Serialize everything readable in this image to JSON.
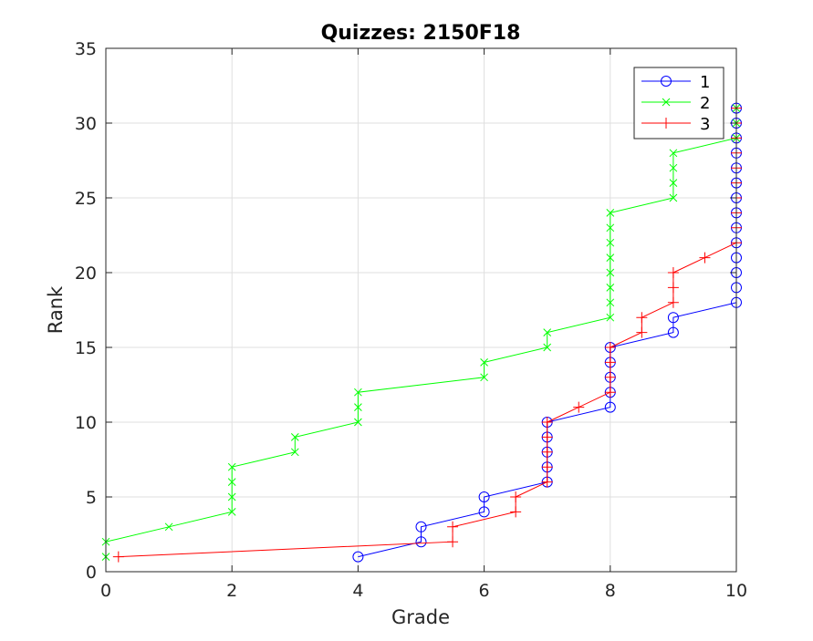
{
  "chart_data": {
    "type": "line",
    "title": "Quizzes: 2150F18",
    "xlabel": "Grade",
    "ylabel": "Rank",
    "xlim": [
      0,
      10
    ],
    "ylim": [
      0,
      35
    ],
    "xticks": [
      0,
      2,
      4,
      6,
      8,
      10
    ],
    "yticks": [
      0,
      5,
      10,
      15,
      20,
      25,
      30,
      35
    ],
    "grid": true,
    "legend_position": "top-right",
    "series": [
      {
        "name": "1",
        "color": "#0000ff",
        "marker": "circle",
        "points": [
          [
            4,
            1
          ],
          [
            5,
            2
          ],
          [
            5,
            3
          ],
          [
            6,
            4
          ],
          [
            6,
            5
          ],
          [
            7,
            6
          ],
          [
            7,
            7
          ],
          [
            7,
            8
          ],
          [
            7,
            9
          ],
          [
            7,
            10
          ],
          [
            8,
            11
          ],
          [
            8,
            12
          ],
          [
            8,
            13
          ],
          [
            8,
            14
          ],
          [
            8,
            15
          ],
          [
            9,
            16
          ],
          [
            9,
            17
          ],
          [
            10,
            18
          ],
          [
            10,
            19
          ],
          [
            10,
            20
          ],
          [
            10,
            21
          ],
          [
            10,
            22
          ],
          [
            10,
            23
          ],
          [
            10,
            24
          ],
          [
            10,
            25
          ],
          [
            10,
            26
          ],
          [
            10,
            27
          ],
          [
            10,
            28
          ],
          [
            10,
            29
          ],
          [
            10,
            30
          ],
          [
            10,
            31
          ]
        ]
      },
      {
        "name": "2",
        "color": "#00ff00",
        "marker": "x",
        "points": [
          [
            0,
            1
          ],
          [
            0,
            2
          ],
          [
            1,
            3
          ],
          [
            2,
            4
          ],
          [
            2,
            5
          ],
          [
            2,
            6
          ],
          [
            2,
            7
          ],
          [
            3,
            8
          ],
          [
            3,
            9
          ],
          [
            4,
            10
          ],
          [
            4,
            11
          ],
          [
            4,
            12
          ],
          [
            6,
            13
          ],
          [
            6,
            14
          ],
          [
            7,
            15
          ],
          [
            7,
            16
          ],
          [
            8,
            17
          ],
          [
            8,
            18
          ],
          [
            8,
            19
          ],
          [
            8,
            20
          ],
          [
            8,
            21
          ],
          [
            8,
            22
          ],
          [
            8,
            23
          ],
          [
            8,
            24
          ],
          [
            9,
            25
          ],
          [
            9,
            26
          ],
          [
            9,
            27
          ],
          [
            9,
            28
          ],
          [
            10,
            29
          ],
          [
            10,
            30
          ],
          [
            10,
            31
          ]
        ]
      },
      {
        "name": "3",
        "color": "#ff0000",
        "marker": "plus",
        "points": [
          [
            0.2,
            1
          ],
          [
            5.5,
            2
          ],
          [
            5.5,
            3
          ],
          [
            6.5,
            4
          ],
          [
            6.5,
            5
          ],
          [
            7,
            6
          ],
          [
            7,
            7
          ],
          [
            7,
            8
          ],
          [
            7,
            9
          ],
          [
            7,
            10
          ],
          [
            7.5,
            11
          ],
          [
            8,
            12
          ],
          [
            8,
            13
          ],
          [
            8,
            14
          ],
          [
            8,
            15
          ],
          [
            8.5,
            16
          ],
          [
            8.5,
            17
          ],
          [
            9,
            18
          ],
          [
            9,
            19
          ],
          [
            9,
            20
          ],
          [
            9.5,
            21
          ],
          [
            10,
            22
          ],
          [
            10,
            23
          ],
          [
            10,
            24
          ],
          [
            10,
            25
          ],
          [
            10,
            26
          ],
          [
            10,
            27
          ],
          [
            10,
            28
          ],
          [
            10,
            29
          ],
          [
            10,
            30
          ],
          [
            10,
            31
          ]
        ]
      }
    ]
  }
}
